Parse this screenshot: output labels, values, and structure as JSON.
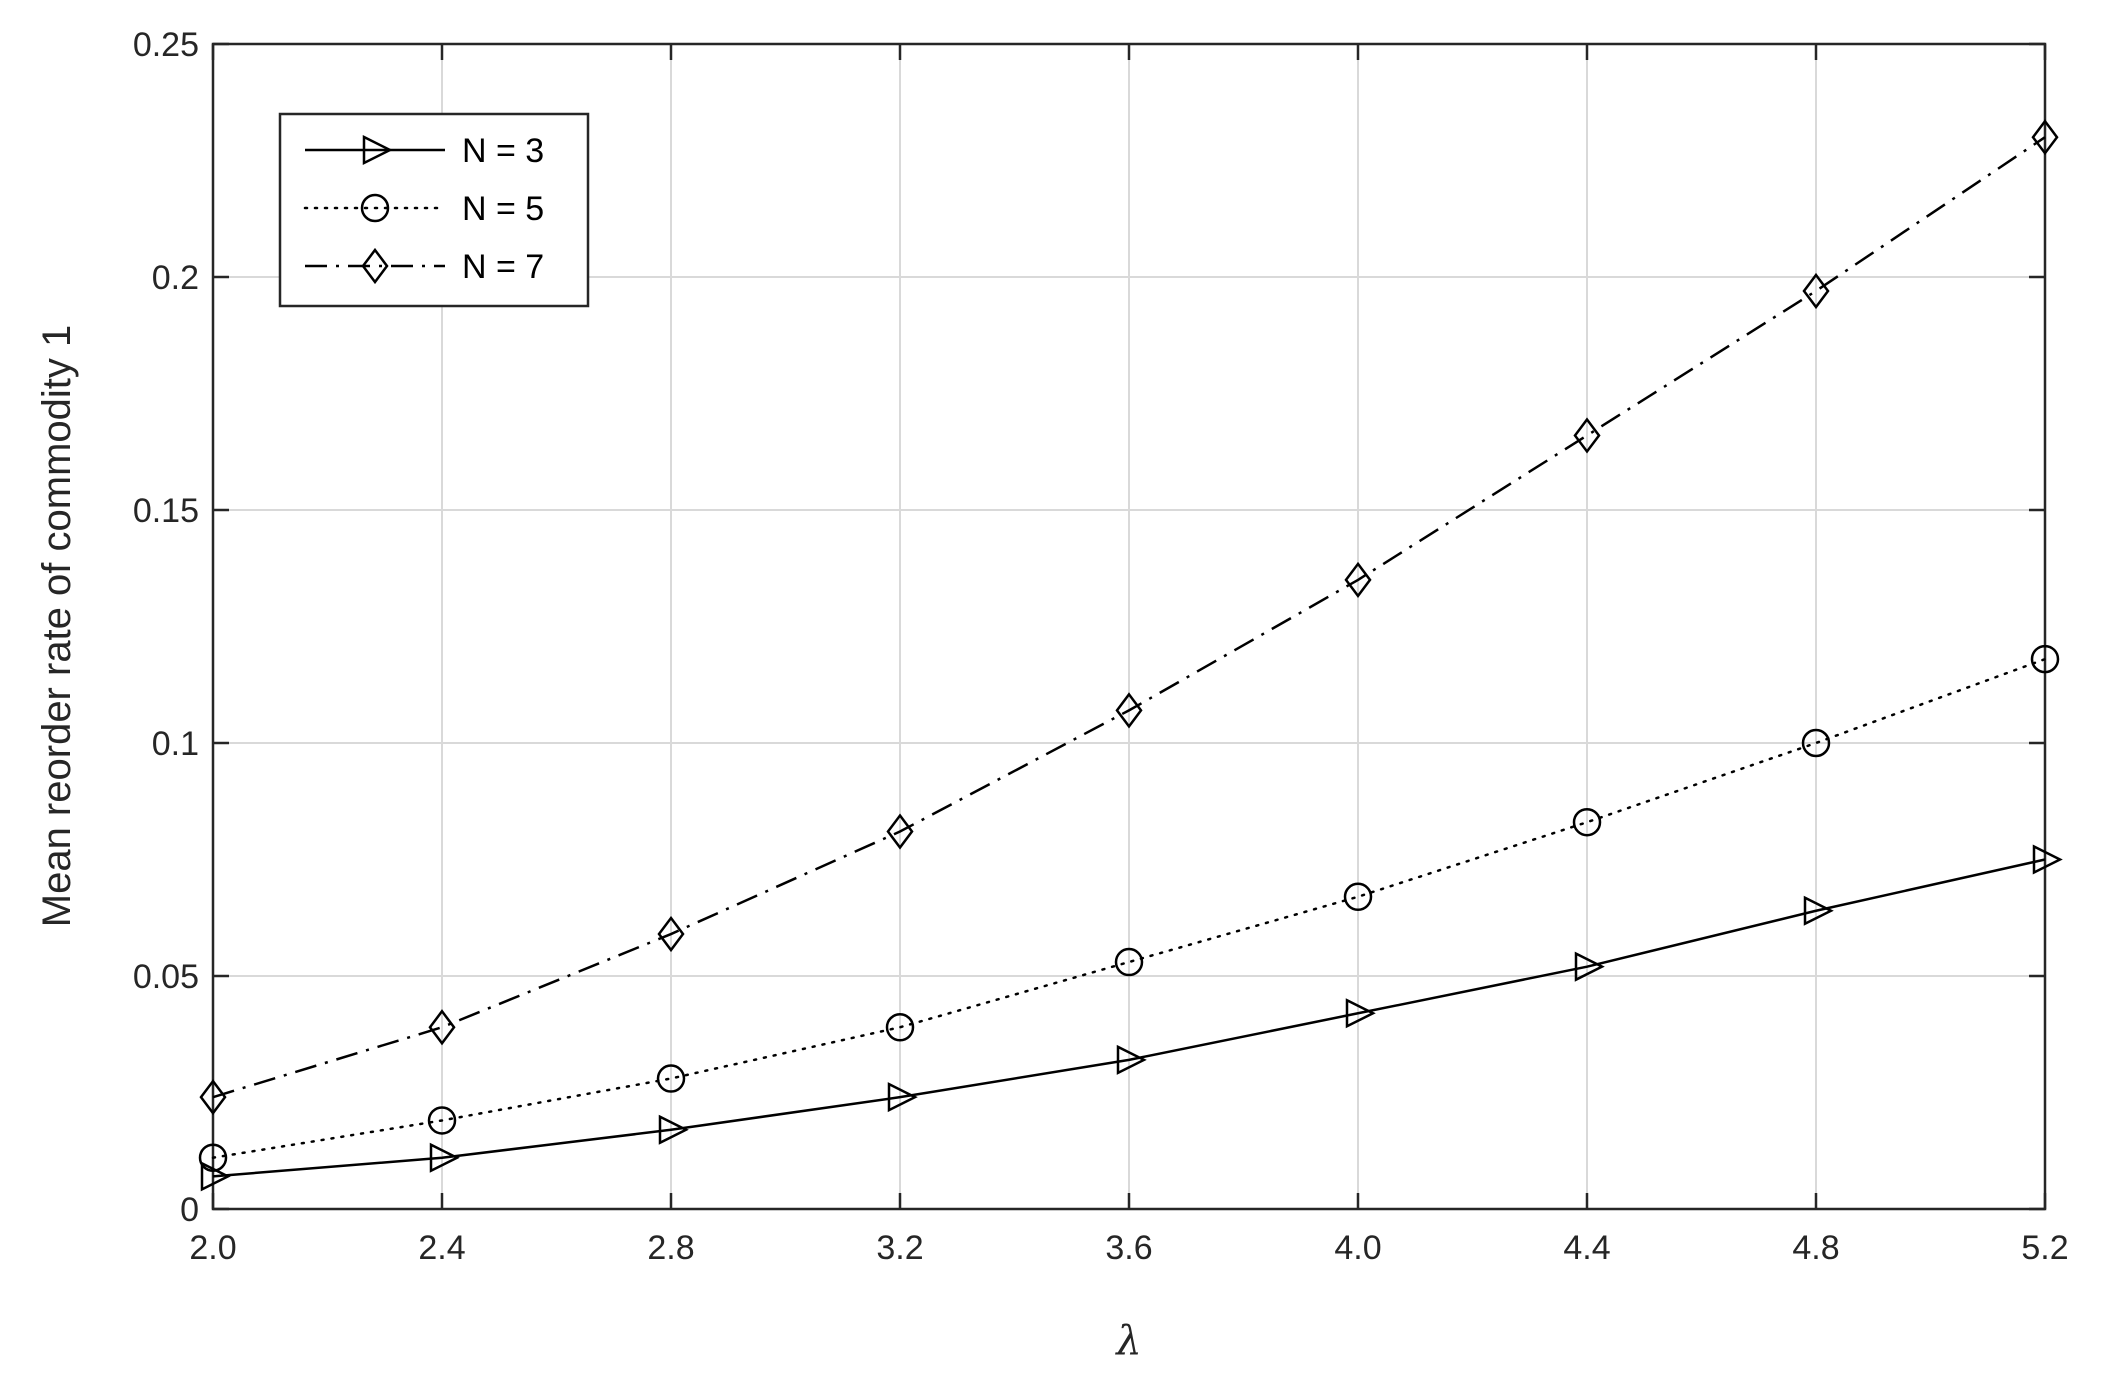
{
  "chart_data": {
    "type": "line",
    "title": "",
    "xlabel": "λ",
    "ylabel": "Mean reorder rate of commodity 1",
    "x": [
      2.0,
      2.4,
      2.8,
      3.2,
      3.6,
      4.0,
      4.4,
      4.8,
      5.2
    ],
    "xticks": [
      "2.0",
      "2.4",
      "2.8",
      "3.2",
      "3.6",
      "4.0",
      "4.4",
      "4.8",
      "5.2"
    ],
    "yticks": [
      "0",
      "0.05",
      "0.1",
      "0.15",
      "0.2",
      "0.25"
    ],
    "ytick_values": [
      0,
      0.05,
      0.1,
      0.15,
      0.2,
      0.25
    ],
    "xlim": [
      2.0,
      5.2
    ],
    "ylim": [
      0,
      0.25
    ],
    "grid": true,
    "legend_position": "top-left",
    "series": [
      {
        "name": "N = 3",
        "marker": "triangle-right",
        "linestyle": "solid",
        "color": "#000000",
        "values": [
          0.007,
          0.011,
          0.017,
          0.024,
          0.032,
          0.042,
          0.052,
          0.064,
          0.075
        ]
      },
      {
        "name": "N = 5",
        "marker": "circle",
        "linestyle": "dotted",
        "color": "#000000",
        "values": [
          0.011,
          0.019,
          0.028,
          0.039,
          0.053,
          0.067,
          0.083,
          0.1,
          0.118
        ]
      },
      {
        "name": "N = 7",
        "marker": "diamond",
        "linestyle": "dashdot",
        "color": "#000000",
        "values": [
          0.024,
          0.039,
          0.059,
          0.081,
          0.107,
          0.135,
          0.166,
          0.197,
          0.23
        ]
      }
    ]
  }
}
